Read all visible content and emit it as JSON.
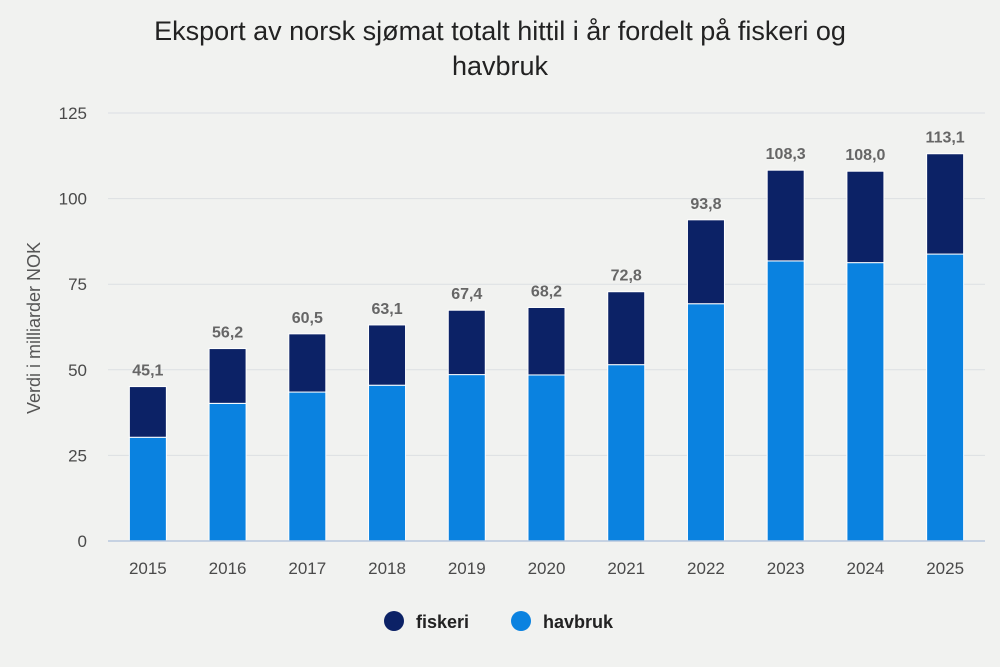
{
  "chart_data": {
    "type": "bar",
    "stacked": true,
    "title_lines": [
      "Eksport av norsk sjømat totalt hittil i år fordelt på fiskeri og",
      "havbruk"
    ],
    "xlabel": "",
    "ylabel": "Verdi i milliarder NOK",
    "ylim": [
      0,
      125
    ],
    "yticks": [
      0,
      25,
      50,
      75,
      100,
      125
    ],
    "grid": true,
    "legend_position": "bottom",
    "categories": [
      "2015",
      "2016",
      "2017",
      "2018",
      "2019",
      "2020",
      "2021",
      "2022",
      "2023",
      "2024",
      "2025"
    ],
    "series": [
      {
        "name": "havbruk",
        "color": "#0a82e0",
        "values": [
          30.3,
          40.2,
          43.5,
          45.5,
          48.6,
          48.5,
          51.5,
          69.3,
          81.8,
          81.3,
          83.8
        ]
      },
      {
        "name": "fiskeri",
        "color": "#0c2266",
        "values": [
          14.8,
          16.0,
          17.0,
          17.6,
          18.8,
          19.7,
          21.3,
          24.5,
          26.5,
          26.7,
          29.3
        ]
      }
    ],
    "totals": [
      "45,1",
      "56,2",
      "60,5",
      "63,1",
      "67,4",
      "68,2",
      "72,8",
      "93,8",
      "108,3",
      "108,0",
      "113,1"
    ],
    "legend_order": [
      "fiskeri",
      "havbruk"
    ]
  }
}
